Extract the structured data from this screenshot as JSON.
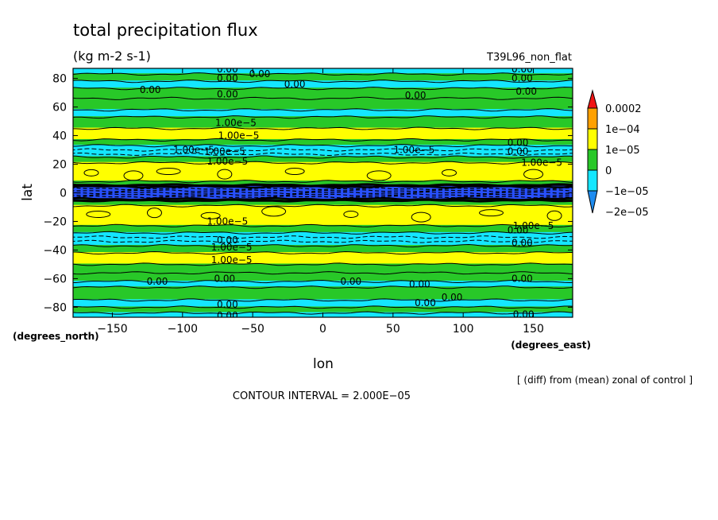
{
  "chart_data": {
    "type": "heatmap",
    "title": "total precipitation flux",
    "units": "(kg m-2 s-1)",
    "dataset_label": "T39L96_non_flat",
    "xlabel": "lon",
    "ylabel": "lat",
    "x_units_label": "(degrees_east)",
    "y_units_label": "(degrees_north)",
    "xlim": [
      -178,
      178
    ],
    "ylim": [
      -87,
      87
    ],
    "x_ticks": [
      {
        "value": -150,
        "label": "−150"
      },
      {
        "value": -100,
        "label": "−100"
      },
      {
        "value": -50,
        "label": "−50"
      },
      {
        "value": 0,
        "label": "0"
      },
      {
        "value": 50,
        "label": "50"
      },
      {
        "value": 100,
        "label": "100"
      },
      {
        "value": 150,
        "label": "150"
      }
    ],
    "y_ticks": [
      {
        "value": 80,
        "label": "80"
      },
      {
        "value": 60,
        "label": "60"
      },
      {
        "value": 40,
        "label": "40"
      },
      {
        "value": 20,
        "label": "20"
      },
      {
        "value": 0,
        "label": "0"
      },
      {
        "value": -20,
        "label": "−20"
      },
      {
        "value": -40,
        "label": "−40"
      },
      {
        "value": -60,
        "label": "−60"
      },
      {
        "value": -80,
        "label": "−80"
      }
    ],
    "colors": {
      "c_m2": "#1e8cf0",
      "c_m1": "#14e6ff",
      "c_0": "#28c828",
      "c_1": "#ffff00",
      "c_2": "#ffa000",
      "c_3": "#f01414",
      "deep": "#2850ff"
    },
    "colorbar": {
      "labels": [
        "0.0002",
        "1e−04",
        "1e−05",
        "0",
        "−1e−05",
        "−2e−05"
      ]
    },
    "bands": [
      {
        "lat0": 87,
        "lat1": 83,
        "level": "c_m1"
      },
      {
        "lat0": 83,
        "lat1": 78,
        "level": "c_0"
      },
      {
        "lat0": 78,
        "lat1": 73,
        "level": "c_m1"
      },
      {
        "lat0": 73,
        "lat1": 66,
        "level": "c_0"
      },
      {
        "lat0": 66,
        "lat1": 58,
        "level": "c_0"
      },
      {
        "lat0": 58,
        "lat1": 53,
        "level": "c_m1"
      },
      {
        "lat0": 53,
        "lat1": 45,
        "level": "c_0"
      },
      {
        "lat0": 45,
        "lat1": 37,
        "level": "c_1"
      },
      {
        "lat0": 37,
        "lat1": 33,
        "level": "c_0"
      },
      {
        "lat0": 33,
        "lat1": 25,
        "level": "c_m1"
      },
      {
        "lat0": 25,
        "lat1": 21,
        "level": "c_0"
      },
      {
        "lat0": 21,
        "lat1": 8,
        "level": "c_1"
      },
      {
        "lat0": 8,
        "lat1": 5,
        "level": "c_0"
      },
      {
        "lat0": 5,
        "lat1": -5,
        "level": "deep"
      },
      {
        "lat0": -5,
        "lat1": -9,
        "level": "c_0"
      },
      {
        "lat0": -9,
        "lat1": -23,
        "level": "c_1"
      },
      {
        "lat0": -23,
        "lat1": -28,
        "level": "c_0"
      },
      {
        "lat0": -28,
        "lat1": -37,
        "level": "c_m1"
      },
      {
        "lat0": -37,
        "lat1": -42,
        "level": "c_0"
      },
      {
        "lat0": -42,
        "lat1": -50,
        "level": "c_1"
      },
      {
        "lat0": -50,
        "lat1": -56,
        "level": "c_0"
      },
      {
        "lat0": -56,
        "lat1": -62,
        "level": "c_0"
      },
      {
        "lat0": -62,
        "lat1": -66,
        "level": "c_m1"
      },
      {
        "lat0": -66,
        "lat1": -75,
        "level": "c_0"
      },
      {
        "lat0": -75,
        "lat1": -80,
        "level": "c_m1"
      },
      {
        "lat0": -80,
        "lat1": -84,
        "level": "c_0"
      },
      {
        "lat0": -84,
        "lat1": -87,
        "level": "c_m1"
      }
    ],
    "contour_lines": [
      {
        "lat": 83,
        "dashed": false
      },
      {
        "lat": 78,
        "dashed": false
      },
      {
        "lat": 73,
        "dashed": false
      },
      {
        "lat": 66,
        "dashed": false
      },
      {
        "lat": 58,
        "dashed": false
      },
      {
        "lat": 53,
        "dashed": false
      },
      {
        "lat": 45,
        "dashed": false
      },
      {
        "lat": 37,
        "dashed": false
      },
      {
        "lat": 33,
        "dashed": false
      },
      {
        "lat": 30,
        "dashed": true
      },
      {
        "lat": 27,
        "dashed": true
      },
      {
        "lat": 25,
        "dashed": false
      },
      {
        "lat": 21,
        "dashed": false
      },
      {
        "lat": 8,
        "dashed": false
      },
      {
        "lat": -9,
        "dashed": false
      },
      {
        "lat": -23,
        "dashed": false
      },
      {
        "lat": -28,
        "dashed": false
      },
      {
        "lat": -31,
        "dashed": true
      },
      {
        "lat": -34,
        "dashed": true
      },
      {
        "lat": -37,
        "dashed": false
      },
      {
        "lat": -42,
        "dashed": false
      },
      {
        "lat": -50,
        "dashed": false
      },
      {
        "lat": -56,
        "dashed": false
      },
      {
        "lat": -62,
        "dashed": false
      },
      {
        "lat": -66,
        "dashed": false
      },
      {
        "lat": -75,
        "dashed": false
      },
      {
        "lat": -80,
        "dashed": false
      },
      {
        "lat": -84,
        "dashed": false
      }
    ],
    "equatorial_band": {
      "lat0": 5,
      "lat1": -5
    },
    "patches": [
      {
        "lon": -165,
        "lat": 14,
        "level": "c_1"
      },
      {
        "lon": -135,
        "lat": 12,
        "level": "c_1"
      },
      {
        "lon": -110,
        "lat": 15,
        "level": "c_1"
      },
      {
        "lon": -70,
        "lat": 13,
        "level": "c_1"
      },
      {
        "lon": -20,
        "lat": 15,
        "level": "c_1"
      },
      {
        "lon": 40,
        "lat": 12,
        "level": "c_1"
      },
      {
        "lon": 90,
        "lat": 14,
        "level": "c_1"
      },
      {
        "lon": 150,
        "lat": 13,
        "level": "c_1"
      },
      {
        "lon": -160,
        "lat": -15,
        "level": "c_1"
      },
      {
        "lon": -120,
        "lat": -14,
        "level": "c_1"
      },
      {
        "lon": -80,
        "lat": -16,
        "level": "c_1"
      },
      {
        "lon": -35,
        "lat": -13,
        "level": "c_1"
      },
      {
        "lon": 20,
        "lat": -15,
        "level": "c_1"
      },
      {
        "lon": 70,
        "lat": -17,
        "level": "c_1"
      },
      {
        "lon": 120,
        "lat": -14,
        "level": "c_1"
      },
      {
        "lon": 165,
        "lat": -16,
        "level": "c_1"
      }
    ],
    "contour_labels": [
      {
        "lon": -68,
        "lat": 86.5,
        "text": "0.00"
      },
      {
        "lon": -68,
        "lat": 80,
        "text": "0.00"
      },
      {
        "lon": -45,
        "lat": 83,
        "text": "0.00"
      },
      {
        "lon": -20,
        "lat": 76,
        "text": "0.00"
      },
      {
        "lon": -123,
        "lat": 72,
        "text": "0.00"
      },
      {
        "lon": -68,
        "lat": 69,
        "text": "0.00"
      },
      {
        "lon": 66,
        "lat": 68,
        "text": "0.00"
      },
      {
        "lon": 142,
        "lat": 86.5,
        "text": "0.00"
      },
      {
        "lon": 142,
        "lat": 80,
        "text": "0.00"
      },
      {
        "lon": 145,
        "lat": 71,
        "text": "0.00"
      },
      {
        "lon": -62,
        "lat": 49,
        "text": "1.00e−5"
      },
      {
        "lon": -60,
        "lat": 40,
        "text": "1.00e−5"
      },
      {
        "lon": -92,
        "lat": 30,
        "text": "1.00e−5"
      },
      {
        "lon": -70,
        "lat": 29,
        "text": "1.00e−5"
      },
      {
        "lon": -68,
        "lat": 22,
        "text": "1.00e−5"
      },
      {
        "lon": 65,
        "lat": 30,
        "text": "1.00e−5"
      },
      {
        "lon": 139,
        "lat": 35,
        "text": "0.00"
      },
      {
        "lon": 139,
        "lat": 29,
        "text": "0.00"
      },
      {
        "lon": 156,
        "lat": 21,
        "text": "1.00e−5"
      },
      {
        "lon": -68,
        "lat": -20,
        "text": "1.00e−5"
      },
      {
        "lon": -68,
        "lat": -33,
        "text": "0.00"
      },
      {
        "lon": -65,
        "lat": -38,
        "text": "1.00e−5"
      },
      {
        "lon": -65,
        "lat": -47,
        "text": "1.00e−5"
      },
      {
        "lon": 150,
        "lat": -23,
        "text": "1.00e−5"
      },
      {
        "lon": 139,
        "lat": -26,
        "text": "0.00"
      },
      {
        "lon": 142,
        "lat": -35,
        "text": "0.00"
      },
      {
        "lon": -118,
        "lat": -62,
        "text": "0.00"
      },
      {
        "lon": -70,
        "lat": -60,
        "text": "0.00"
      },
      {
        "lon": 20,
        "lat": -62,
        "text": "0.00"
      },
      {
        "lon": 69,
        "lat": -64,
        "text": "0.00"
      },
      {
        "lon": 142,
        "lat": -60,
        "text": "0.00"
      },
      {
        "lon": 92,
        "lat": -73,
        "text": "0.00"
      },
      {
        "lon": 73,
        "lat": -77,
        "text": "0.00"
      },
      {
        "lon": -68,
        "lat": -78,
        "text": "0.00"
      },
      {
        "lon": -68,
        "lat": -86,
        "text": "0.00"
      },
      {
        "lon": 143,
        "lat": -85,
        "text": "0.00"
      }
    ],
    "footnote": "[ (diff) from (mean) zonal of control ]",
    "contour_interval_text": "CONTOUR INTERVAL = 2.000E−05"
  }
}
